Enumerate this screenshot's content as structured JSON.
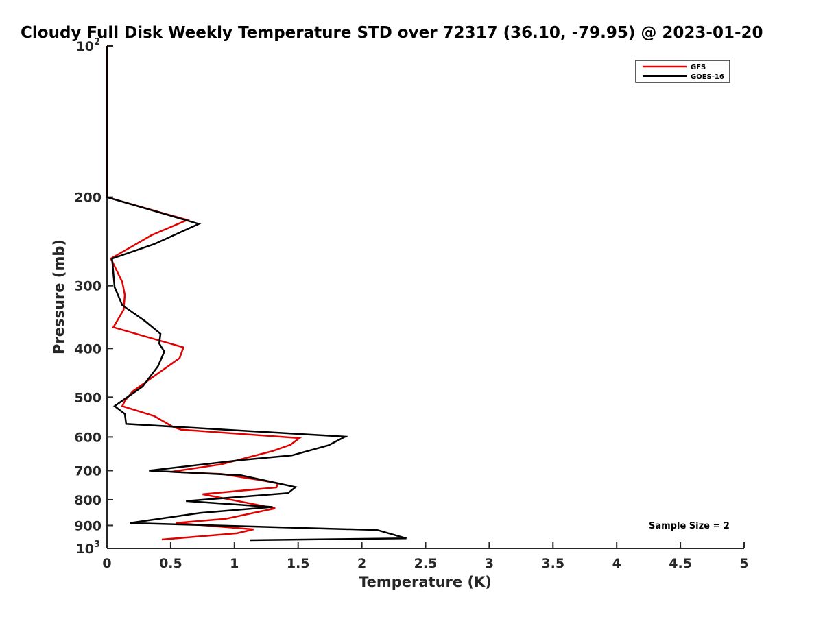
{
  "chart_data": {
    "type": "line",
    "title": "Cloudy Full Disk Weekly Temperature STD over 72317 (36.10, -79.95) @ 2023-01-20",
    "xlabel": "Temperature (K)",
    "ylabel": "Pressure (mb)",
    "xlim": [
      0,
      5
    ],
    "ylim": [
      100,
      1000
    ],
    "yscale": "log",
    "y_reversed": true,
    "grid": false,
    "legend_position": "top-right",
    "xticks": [
      {
        "value": 0,
        "label": "0"
      },
      {
        "value": 0.5,
        "label": "0.5"
      },
      {
        "value": 1,
        "label": "1"
      },
      {
        "value": 1.5,
        "label": "1.5"
      },
      {
        "value": 2,
        "label": "2"
      },
      {
        "value": 2.5,
        "label": "2.5"
      },
      {
        "value": 3,
        "label": "3"
      },
      {
        "value": 3.5,
        "label": "3.5"
      },
      {
        "value": 4,
        "label": "4"
      },
      {
        "value": 4.5,
        "label": "4.5"
      },
      {
        "value": 5,
        "label": "5"
      }
    ],
    "yticks": [
      {
        "value": 100,
        "base": "10",
        "exp": "2"
      },
      {
        "value": 200,
        "label": "200"
      },
      {
        "value": 300,
        "label": "300"
      },
      {
        "value": 400,
        "label": "400"
      },
      {
        "value": 500,
        "label": "500"
      },
      {
        "value": 600,
        "label": "600"
      },
      {
        "value": 700,
        "label": "700"
      },
      {
        "value": 800,
        "label": "800"
      },
      {
        "value": 900,
        "label": "900"
      },
      {
        "value": 1000,
        "base": "10",
        "exp": "3"
      }
    ],
    "series": [
      {
        "name": "GFS",
        "color": "#e00000",
        "x": [
          0,
          0,
          0,
          0.63,
          0.35,
          0.03,
          0.12,
          0.14,
          0.13,
          0.05,
          0.6,
          0.57,
          0.2,
          0.14,
          0.12,
          0.37,
          0.52,
          0.58,
          1.51,
          1.44,
          1.3,
          0.9,
          0.5,
          0.9,
          1.2,
          1.34,
          1.33,
          0.75,
          1.32,
          0.93,
          0.54,
          1.15,
          1.02,
          0.43
        ],
        "y": [
          100,
          150,
          200,
          222,
          238,
          265,
          295,
          313,
          335,
          363,
          398,
          418,
          487,
          509,
          521,
          545,
          573,
          580,
          603,
          622,
          640,
          680,
          704,
          711,
          731,
          742,
          756,
          780,
          832,
          873,
          890,
          916,
          933,
          960
        ]
      },
      {
        "name": "GOES-16",
        "color": "#000000",
        "x": [
          0,
          0,
          0,
          0.72,
          0.37,
          0.04,
          0.06,
          0.12,
          0.3,
          0.42,
          0.41,
          0.45,
          0.4,
          0.28,
          0.16,
          0.06,
          0.14,
          0.15,
          1.87,
          1.74,
          1.45,
          1.05,
          0.33,
          1.05,
          1.32,
          1.48,
          1.42,
          0.62,
          1.3,
          0.73,
          0.18,
          2.12,
          2.35,
          1.12
        ],
        "y": [
          100,
          150,
          200,
          226,
          248,
          265,
          302,
          328,
          353,
          374,
          391,
          406,
          434,
          476,
          500,
          521,
          540,
          565,
          599,
          623,
          653,
          667,
          700,
          715,
          740,
          755,
          776,
          805,
          827,
          850,
          890,
          919,
          955,
          963
        ]
      }
    ],
    "annotations": [
      {
        "text": "Sample Size = 2"
      }
    ]
  }
}
